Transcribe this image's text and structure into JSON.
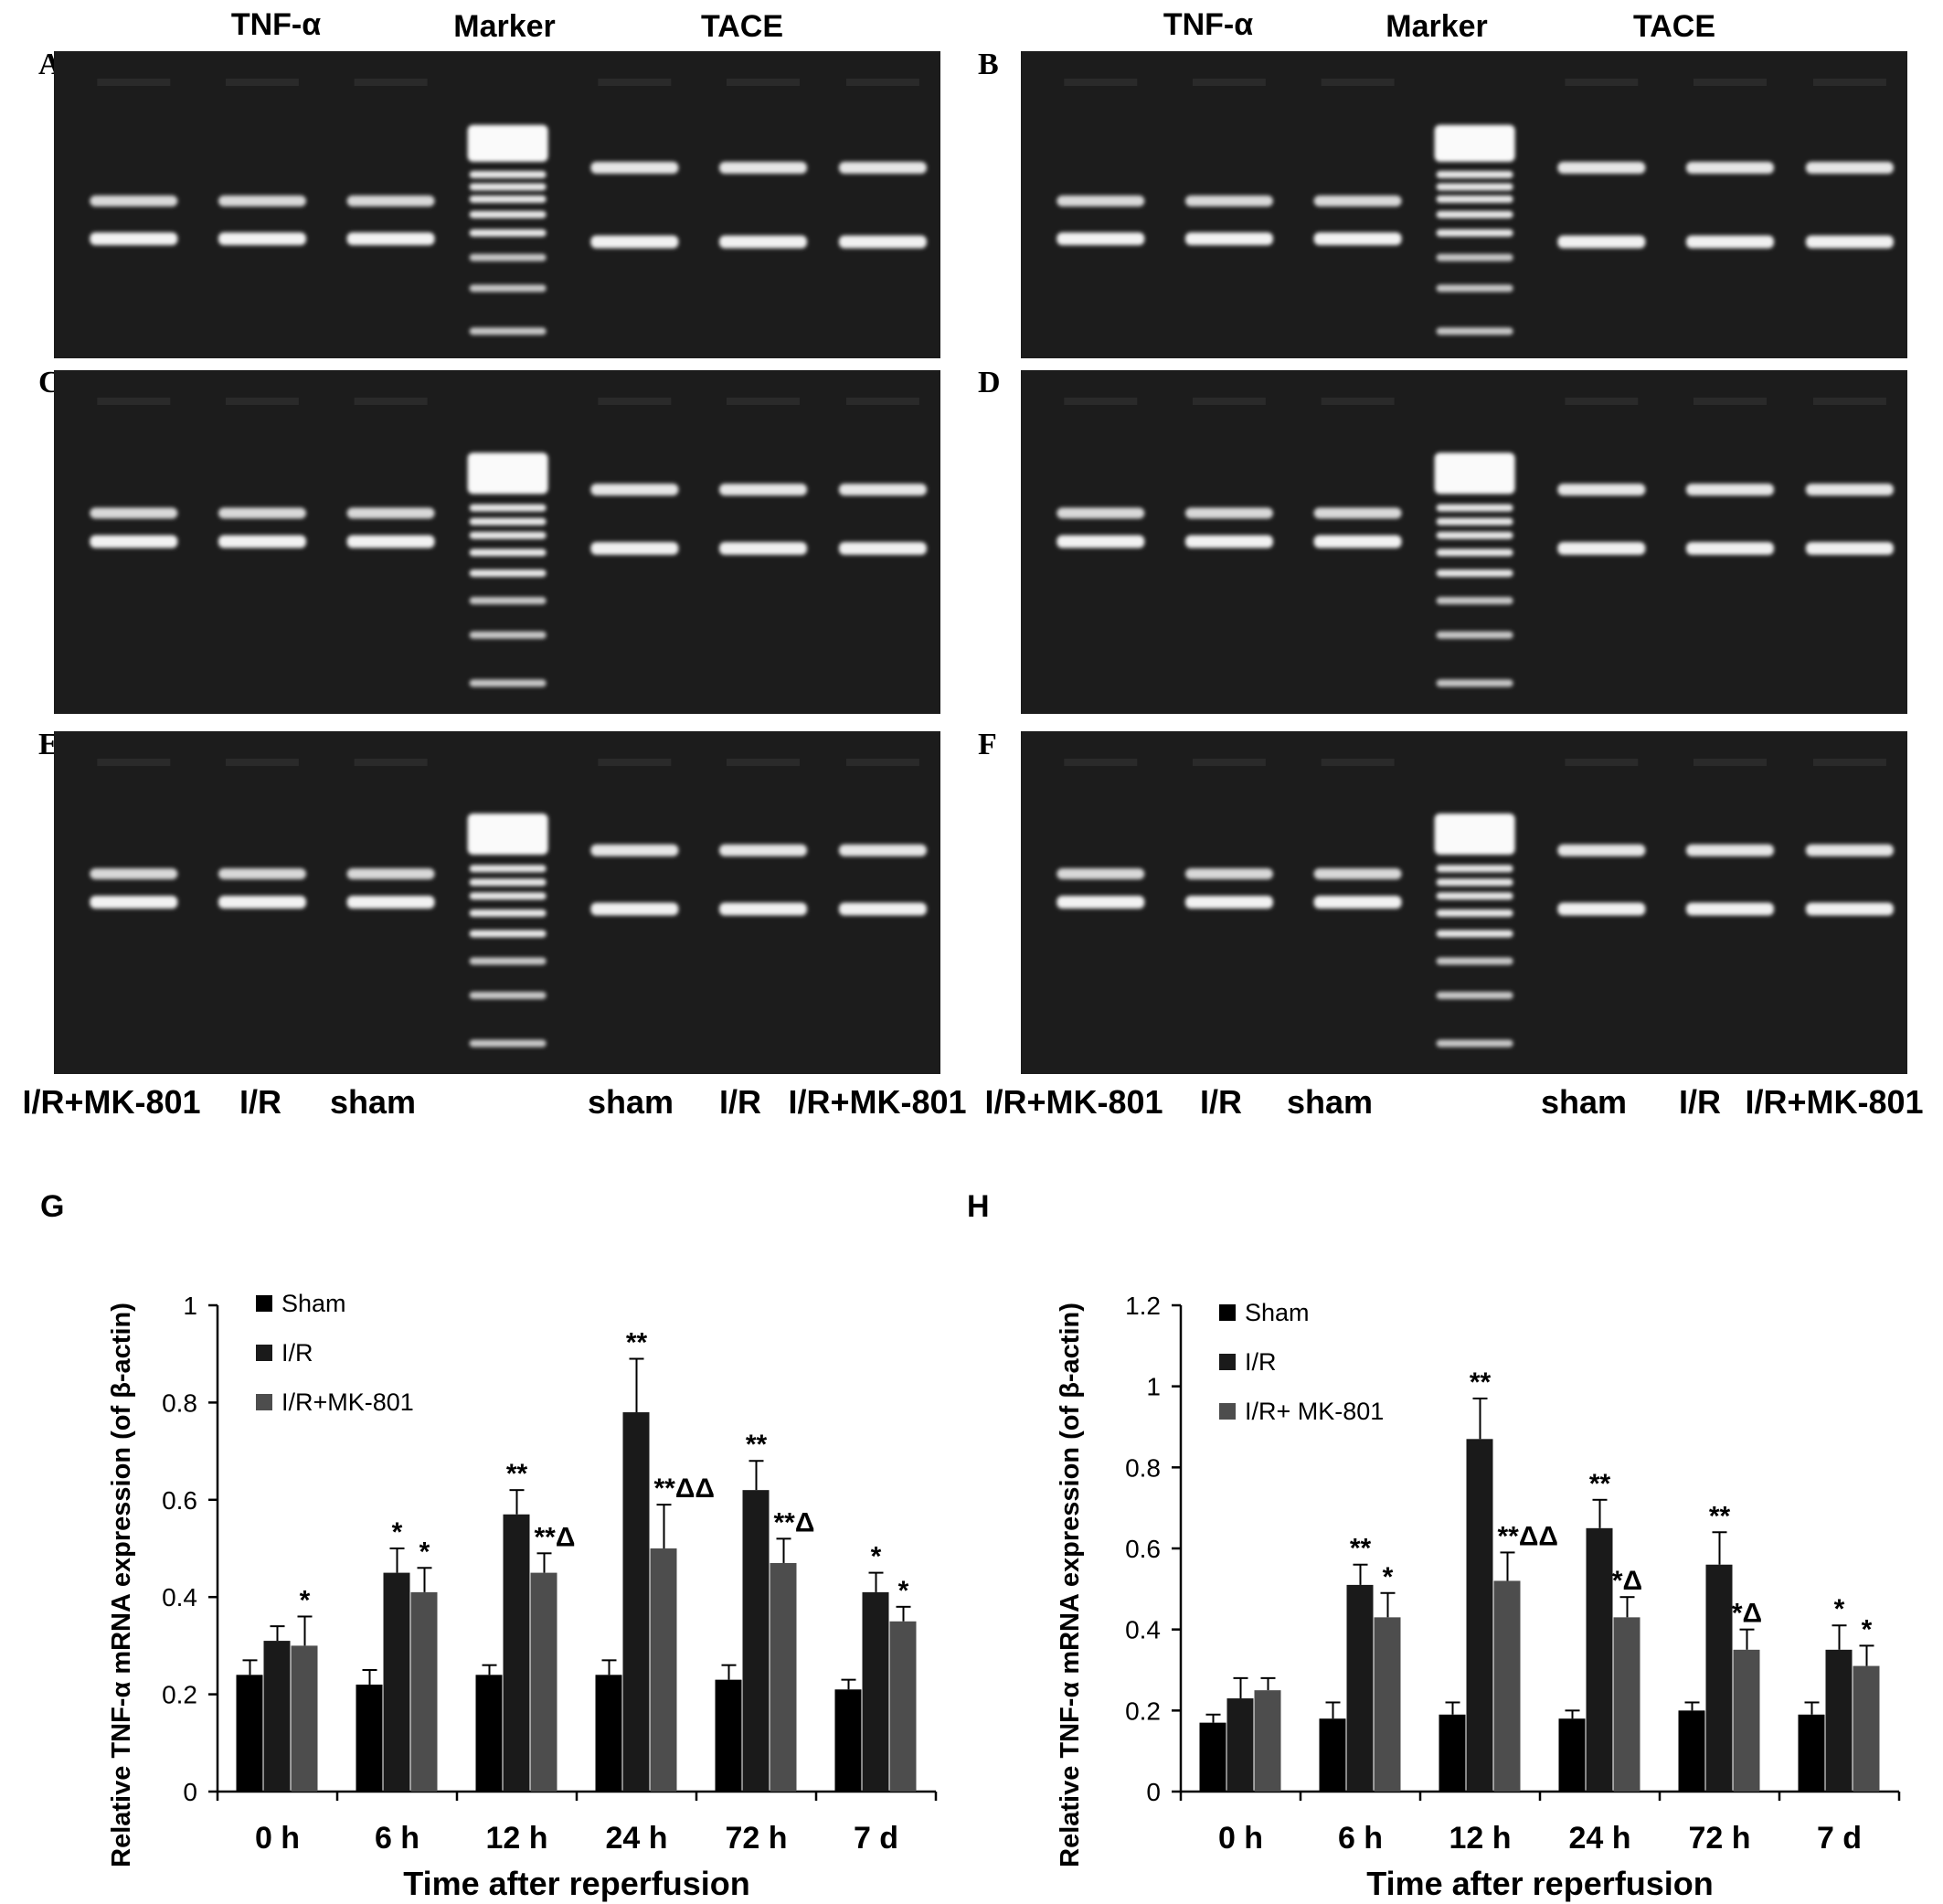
{
  "gel_panels": {
    "letters": [
      "A",
      "B",
      "C",
      "D",
      "E",
      "F"
    ],
    "headers": {
      "left": "TNF-α",
      "marker": "Marker",
      "right": "TACE"
    },
    "lane_labels_left_panel": [
      "I/R+MK-801",
      "I/R",
      "sham",
      "sham",
      "I/R",
      "I/R+MK-801"
    ],
    "lane_labels_right_panel": [
      "I/R+MK-801",
      "I/R",
      "sham",
      "sham",
      "I/R",
      "I/R+MK-801"
    ]
  },
  "chart_data": [
    {
      "panel": "G",
      "type": "bar",
      "categories": [
        "0 h",
        "6 h",
        "12 h",
        "24 h",
        "72 h",
        "7 d"
      ],
      "series": [
        {
          "name": "Sham",
          "values": [
            0.24,
            0.22,
            0.24,
            0.24,
            0.23,
            0.21
          ],
          "errors": [
            0.03,
            0.03,
            0.02,
            0.03,
            0.03,
            0.02
          ],
          "color": "#000000"
        },
        {
          "name": "I/R",
          "values": [
            0.31,
            0.45,
            0.57,
            0.78,
            0.62,
            0.41
          ],
          "errors": [
            0.03,
            0.05,
            0.05,
            0.11,
            0.06,
            0.04
          ],
          "color": "#1a1a1a"
        },
        {
          "name": "I/R+MK-801",
          "values": [
            0.3,
            0.41,
            0.45,
            0.5,
            0.47,
            0.35
          ],
          "errors": [
            0.06,
            0.05,
            0.04,
            0.09,
            0.05,
            0.03
          ],
          "color": "#4d4d4d"
        }
      ],
      "annotations": [
        [
          "",
          "",
          "*"
        ],
        [
          "",
          "*",
          "*"
        ],
        [
          "",
          "**",
          "**Δ"
        ],
        [
          "",
          "**",
          "**ΔΔ"
        ],
        [
          "",
          "**",
          "**Δ"
        ],
        [
          "",
          "*",
          "*"
        ]
      ],
      "xlabel": "Time after reperfusion",
      "ylabel": "Relative TNF-α mRNA expression (of β-actin)",
      "ylim": [
        0,
        1
      ],
      "yticks": [
        0,
        0.2,
        0.4,
        0.6,
        0.8,
        1
      ],
      "ytick_labels": [
        "0",
        "0.2",
        "0.4",
        "0.6",
        "0.8",
        "1"
      ],
      "grid": false,
      "legend": "top-left"
    },
    {
      "panel": "H",
      "type": "bar",
      "categories": [
        "0 h",
        "6 h",
        "12 h",
        "24 h",
        "72 h",
        "7 d"
      ],
      "series": [
        {
          "name": "Sham",
          "values": [
            0.17,
            0.18,
            0.19,
            0.18,
            0.2,
            0.19
          ],
          "errors": [
            0.02,
            0.04,
            0.03,
            0.02,
            0.02,
            0.03
          ],
          "color": "#000000"
        },
        {
          "name": "I/R",
          "values": [
            0.23,
            0.51,
            0.87,
            0.65,
            0.56,
            0.35
          ],
          "errors": [
            0.05,
            0.05,
            0.1,
            0.07,
            0.08,
            0.06
          ],
          "color": "#1a1a1a"
        },
        {
          "name": "I/R+ MK-801",
          "values": [
            0.25,
            0.43,
            0.52,
            0.43,
            0.35,
            0.31
          ],
          "errors": [
            0.03,
            0.06,
            0.07,
            0.05,
            0.05,
            0.05
          ],
          "color": "#4d4d4d"
        }
      ],
      "annotations": [
        [
          "",
          "",
          ""
        ],
        [
          "",
          "**",
          "*"
        ],
        [
          "",
          "**",
          "**ΔΔ"
        ],
        [
          "",
          "**",
          "*Δ"
        ],
        [
          "",
          "**",
          "*Δ"
        ],
        [
          "",
          "*",
          "*"
        ]
      ],
      "xlabel": "Time after reperfusion",
      "ylabel": "Relative TNF-α mRNA expression (of β-actin)",
      "ylim": [
        0,
        1.2
      ],
      "yticks": [
        0,
        0.2,
        0.4,
        0.6,
        0.8,
        1,
        1.2
      ],
      "ytick_labels": [
        "0",
        "0.2",
        "0.4",
        "0.6",
        "0.8",
        "1",
        "1.2"
      ],
      "grid": false,
      "legend": "top-left"
    }
  ]
}
